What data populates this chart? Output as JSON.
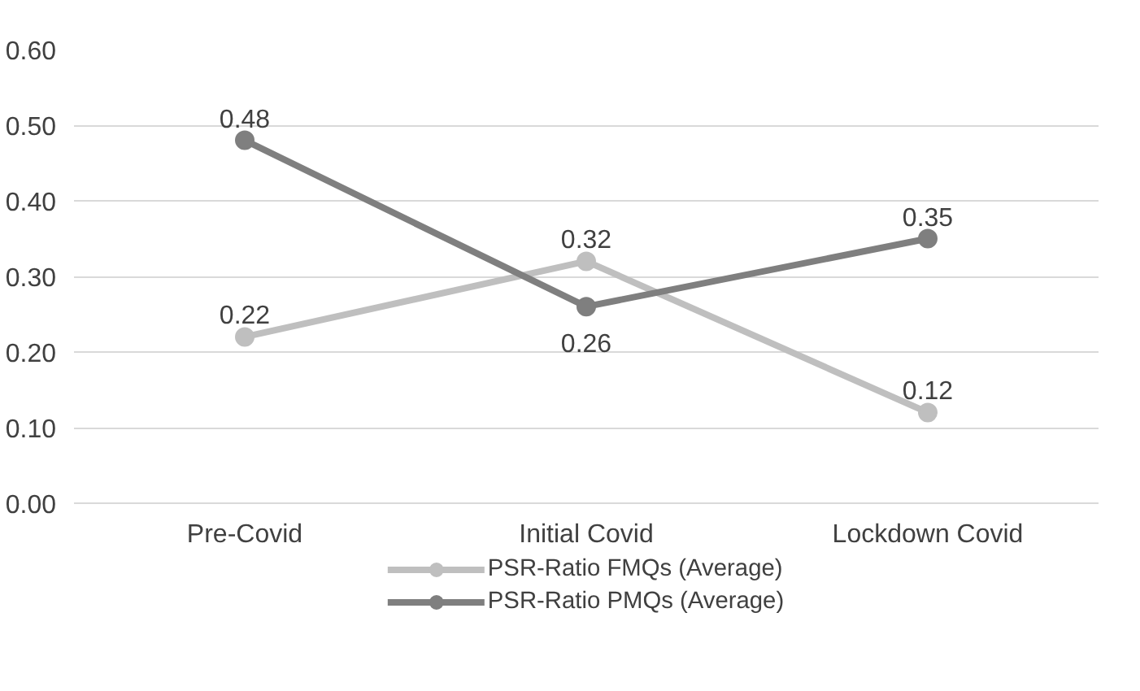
{
  "chart_data": {
    "type": "line",
    "categories": [
      "Pre-Covid",
      "Initial Covid",
      "Lockdown Covid"
    ],
    "series": [
      {
        "name": "PSR-Ratio FMQs (Average)",
        "color": "#bfbfbf",
        "values": [
          0.22,
          0.32,
          0.12
        ]
      },
      {
        "name": "PSR-Ratio PMQs (Average)",
        "color": "#7f7f7f",
        "values": [
          0.48,
          0.26,
          0.35
        ]
      }
    ],
    "ylim": [
      0,
      0.6
    ],
    "yticks": [
      {
        "value": 0,
        "label": "0.00"
      },
      {
        "value": 0.1,
        "label": "0.10"
      },
      {
        "value": 0.2,
        "label": "0.20"
      },
      {
        "value": 0.3,
        "label": "0.30"
      },
      {
        "value": 0.4,
        "label": "0.40"
      },
      {
        "value": 0.5,
        "label": "0.50"
      },
      {
        "value": 0.6,
        "label": "0.60"
      }
    ],
    "data_labels": true,
    "grid": "y",
    "legend": "bottom",
    "marker": "circle",
    "line_style": "solid"
  }
}
